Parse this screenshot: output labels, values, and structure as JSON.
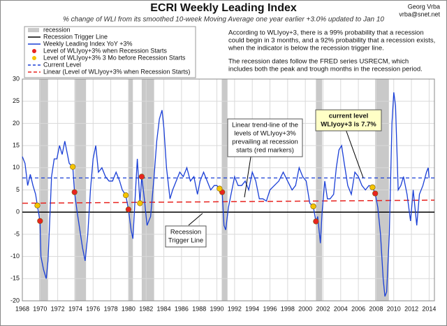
{
  "chart_data": {
    "type": "line",
    "title": "ECRI Weekly Leading Index",
    "subtitle": "% change of WLI from its smoothed 10-week Moving Average one year earlier +3.0% updated to Jan 10",
    "credit": [
      "Georg Vrba",
      "vrba@snet.net"
    ],
    "notes": [
      "According to WLIyoy+3, there is a 99% probability that a recession",
      "could begin in 3 months, and a 92% probability that a recession exists,",
      "when the indicator is below the recession trigger line.",
      "The recession dates follow the FRED series USRECM, which",
      "includes both the peak and trough months in the recession period."
    ],
    "xlim": [
      1968,
      2014.6
    ],
    "xticks": [
      1968,
      1970,
      1972,
      1974,
      1976,
      1978,
      1980,
      1982,
      1984,
      1986,
      1988,
      1990,
      1992,
      1994,
      1996,
      1998,
      2000,
      2002,
      2004,
      2006,
      2008,
      2010,
      2012,
      2014
    ],
    "ylim": [
      -20,
      30
    ],
    "yticks": [
      -20,
      -15,
      -10,
      -5,
      0,
      5,
      10,
      15,
      20,
      25,
      30
    ],
    "grid": true,
    "recessions": {
      "name": "recession",
      "color": "#c9c9c9",
      "periods": [
        [
          1969.9,
          1970.9
        ],
        [
          1973.9,
          1975.2
        ],
        [
          1980.0,
          1980.5
        ],
        [
          1981.5,
          1982.9
        ],
        [
          1990.55,
          1991.2
        ],
        [
          2001.2,
          2001.9
        ],
        [
          2007.9,
          2009.45
        ]
      ]
    },
    "trigger": {
      "name": "Recession Trigger Line",
      "value": 0,
      "color": "#000000"
    },
    "series": [
      {
        "name": "Weekly Leading Index YoY +3%",
        "color": "#1a3fd6",
        "x": [
          1968.0,
          1968.3,
          1968.6,
          1968.9,
          1969.2,
          1969.5,
          1969.7,
          1969.9,
          1970.0,
          1970.1,
          1970.4,
          1970.7,
          1970.9,
          1971.1,
          1971.3,
          1971.6,
          1971.9,
          1972.2,
          1972.5,
          1972.8,
          1973.0,
          1973.3,
          1973.7,
          1973.9,
          1974.2,
          1974.5,
          1974.8,
          1975.1,
          1975.4,
          1975.7,
          1976.0,
          1976.3,
          1976.6,
          1977.0,
          1977.4,
          1977.8,
          1978.2,
          1978.6,
          1979.0,
          1979.3,
          1979.7,
          1980.0,
          1980.3,
          1980.5,
          1980.8,
          1981.0,
          1981.3,
          1981.5,
          1981.8,
          1982.1,
          1982.5,
          1982.9,
          1983.2,
          1983.5,
          1983.8,
          1984.0,
          1984.3,
          1984.7,
          1985.0,
          1985.4,
          1985.8,
          1986.2,
          1986.6,
          1987.0,
          1987.4,
          1987.8,
          1988.1,
          1988.5,
          1988.9,
          1989.3,
          1989.7,
          1990.0,
          1990.3,
          1990.6,
          1990.8,
          1991.0,
          1991.3,
          1991.6,
          1992.0,
          1992.4,
          1992.8,
          1993.2,
          1993.6,
          1994.0,
          1994.4,
          1994.8,
          1995.2,
          1995.6,
          1996.0,
          1996.5,
          1997.0,
          1997.5,
          1998.0,
          1998.5,
          1998.9,
          1999.3,
          1999.7,
          2000.1,
          2000.5,
          2000.9,
          2001.2,
          2001.4,
          2001.7,
          2001.9,
          2002.2,
          2002.5,
          2002.8,
          2003.2,
          2003.5,
          2003.8,
          2004.1,
          2004.4,
          2004.8,
          2005.2,
          2005.6,
          2006.0,
          2006.4,
          2006.8,
          2007.2,
          2007.6,
          2007.9,
          2008.2,
          2008.5,
          2008.8,
          2009.0,
          2009.2,
          2009.5,
          2009.8,
          2010.0,
          2010.2,
          2010.5,
          2010.8,
          2011.1,
          2011.5,
          2011.9,
          2012.2,
          2012.6,
          2012.9,
          2013.3,
          2013.7,
          2013.9,
          2014.0
        ],
        "values": [
          12.5,
          11,
          6,
          8.5,
          6,
          4,
          1.5,
          -1,
          -2,
          -10,
          -13,
          -15,
          -11,
          -2,
          8,
          12,
          12,
          15,
          13,
          16,
          14,
          11,
          10.2,
          4.5,
          0,
          -4,
          -8,
          -11,
          -5,
          5,
          12,
          15,
          9,
          10,
          8,
          7,
          7,
          9,
          7,
          5,
          3.8,
          0.6,
          -4,
          -6,
          5,
          12,
          2,
          8,
          3,
          -3,
          -1,
          8,
          16,
          21,
          23,
          19,
          10,
          3,
          5,
          7,
          9,
          8,
          10,
          7,
          8,
          4,
          7,
          9,
          7,
          5,
          6,
          6,
          5.3,
          4.5,
          -3,
          -4,
          1,
          4,
          8,
          6,
          6,
          7,
          5,
          9,
          7,
          3,
          3,
          2.5,
          5,
          6,
          7,
          9,
          7,
          5,
          6,
          10,
          8,
          7,
          2,
          1.3,
          -2.1,
          -1,
          -7,
          0,
          7,
          3,
          3,
          4,
          10,
          14,
          15,
          11,
          6,
          4,
          9,
          8,
          6,
          5,
          6,
          5.6,
          4.2,
          1,
          -5,
          -15,
          -19,
          -18,
          -5,
          20,
          27,
          24,
          5,
          6,
          8,
          4,
          -2,
          5,
          -3,
          4,
          6,
          9,
          10,
          7.7
        ]
      },
      {
        "name": "Level of WLIyoy+3% when Recession Starts",
        "color": "#e8231f",
        "marker": true,
        "x": [
          1970.0,
          1973.9,
          1980.0,
          1981.5,
          1990.6,
          2001.2,
          2007.9
        ],
        "values": [
          -2,
          4.5,
          0.6,
          8,
          4.5,
          -2.1,
          4.2
        ]
      },
      {
        "name": "Level of WLIyoy+3% 3 Mo before Recession Starts",
        "color": "#f5c400",
        "marker": true,
        "x": [
          1969.7,
          1973.7,
          1979.7,
          1981.3,
          1990.3,
          2000.9,
          2007.6
        ],
        "values": [
          1.5,
          10.2,
          3.8,
          2,
          5.3,
          1.3,
          5.6
        ]
      }
    ],
    "current": {
      "name": "Current Level",
      "value": 7.7,
      "color": "#1a3fd6"
    },
    "trend": {
      "name": "Linear (Level of WLIyoy+3% when Recession Starts)",
      "color": "#e8231f",
      "x": [
        1968,
        2014.6
      ],
      "values": [
        2.0,
        2.7
      ]
    },
    "annotations": [
      [
        "Linear trend-line of the",
        "levels of WLIyoy+3%",
        "prevailing at recession",
        "starts (red markers)"
      ],
      [
        "Recession",
        "Trigger Line"
      ],
      [
        "current level",
        "WLIyoy+3 is 7.7%"
      ]
    ]
  }
}
